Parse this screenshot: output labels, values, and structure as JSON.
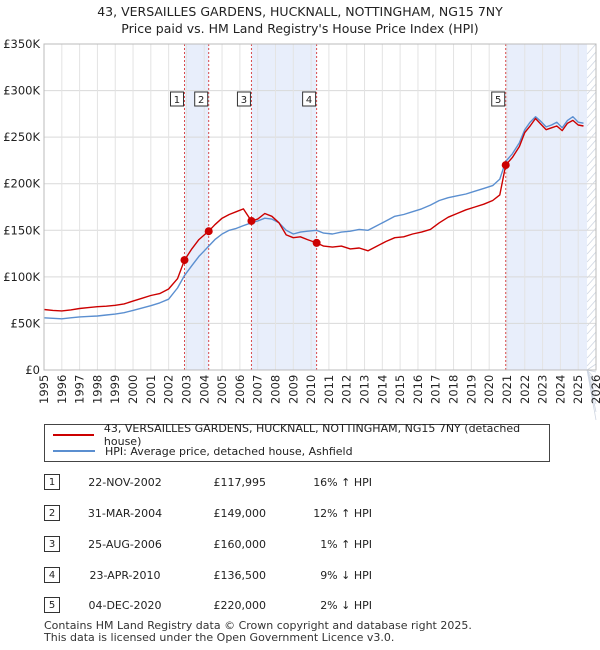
{
  "title_line1": "43, VERSAILLES GARDENS, HUCKNALL, NOTTINGHAM, NG15 7NY",
  "title_line2": "Price paid vs. HM Land Registry's House Price Index (HPI)",
  "colors": {
    "price_paid": "#cc0000",
    "hpi": "#5b8fd0",
    "shade": "#e8eefb"
  },
  "chart_data": {
    "type": "line",
    "ylim": [
      0,
      350000
    ],
    "xlim": [
      1995,
      2026
    ],
    "y_ticks": [
      0,
      50000,
      100000,
      150000,
      200000,
      250000,
      300000,
      350000
    ],
    "y_tick_labels": [
      "£0",
      "£50K",
      "£100K",
      "£150K",
      "£200K",
      "£250K",
      "£300K",
      "£350K"
    ],
    "x_tick_labels": [
      "1995",
      "1996",
      "1997",
      "1998",
      "1999",
      "2000",
      "2001",
      "2002",
      "2003",
      "2004",
      "2005",
      "2006",
      "2007",
      "2008",
      "2009",
      "2010",
      "2011",
      "2012",
      "2013",
      "2014",
      "2015",
      "2016",
      "2017",
      "2018",
      "2019",
      "2020",
      "2021",
      "2022",
      "2023",
      "2024",
      "2025",
      "2026"
    ],
    "shaded_spans": [
      [
        2002.9,
        2004.25
      ],
      [
        2006.65,
        2010.3
      ],
      [
        2020.93,
        2025.5
      ]
    ],
    "series": [
      {
        "name": "43, VERSAILLES GARDENS, HUCKNALL, NOTTINGHAM, NG15 7NY (detached house)",
        "color": "#cc0000",
        "x": [
          1995.0,
          1995.5,
          1996.0,
          1996.5,
          1997.0,
          1997.5,
          1998.0,
          1998.5,
          1999.0,
          1999.5,
          2000.0,
          2000.5,
          2001.0,
          2001.5,
          2002.0,
          2002.5,
          2002.89,
          2003.3,
          2003.7,
          2004.0,
          2004.25,
          2004.6,
          2005.0,
          2005.4,
          2005.8,
          2006.2,
          2006.65,
          2007.0,
          2007.4,
          2007.8,
          2008.2,
          2008.6,
          2009.0,
          2009.4,
          2009.8,
          2010.31,
          2010.7,
          2011.2,
          2011.7,
          2012.2,
          2012.7,
          2013.2,
          2013.7,
          2014.2,
          2014.7,
          2015.2,
          2015.7,
          2016.2,
          2016.7,
          2017.2,
          2017.7,
          2018.2,
          2018.7,
          2019.2,
          2019.7,
          2020.2,
          2020.6,
          2020.93,
          2021.3,
          2021.7,
          2022.0,
          2022.3,
          2022.6,
          2022.9,
          2023.2,
          2023.5,
          2023.8,
          2024.1,
          2024.4,
          2024.7,
          2025.0,
          2025.3
        ],
        "values": [
          65000,
          64000,
          63500,
          64500,
          66000,
          67000,
          68000,
          68500,
          69500,
          71000,
          74000,
          77000,
          80000,
          82000,
          87000,
          98000,
          117995,
          130000,
          140000,
          145000,
          149000,
          156000,
          163000,
          167000,
          170000,
          173000,
          160000,
          162000,
          168000,
          165000,
          158000,
          145000,
          142000,
          143000,
          140000,
          136500,
          133000,
          132000,
          133000,
          130000,
          131000,
          128000,
          133000,
          138000,
          142000,
          143000,
          146000,
          148000,
          151000,
          158000,
          164000,
          168000,
          172000,
          175000,
          178000,
          182000,
          188000,
          220000,
          228000,
          240000,
          255000,
          262000,
          270000,
          264000,
          258000,
          260000,
          262000,
          257000,
          265000,
          268000,
          263000,
          262000
        ]
      },
      {
        "name": "HPI: Average price, detached house, Ashfield",
        "color": "#5b8fd0",
        "x": [
          1995.0,
          1995.5,
          1996.0,
          1996.5,
          1997.0,
          1997.5,
          1998.0,
          1998.5,
          1999.0,
          1999.5,
          2000.0,
          2000.5,
          2001.0,
          2001.5,
          2002.0,
          2002.5,
          2002.89,
          2003.3,
          2003.7,
          2004.0,
          2004.25,
          2004.6,
          2005.0,
          2005.4,
          2005.8,
          2006.2,
          2006.65,
          2007.0,
          2007.4,
          2007.8,
          2008.2,
          2008.6,
          2009.0,
          2009.4,
          2009.8,
          2010.31,
          2010.7,
          2011.2,
          2011.7,
          2012.2,
          2012.7,
          2013.2,
          2013.7,
          2014.2,
          2014.7,
          2015.2,
          2015.7,
          2016.2,
          2016.7,
          2017.2,
          2017.7,
          2018.2,
          2018.7,
          2019.2,
          2019.7,
          2020.2,
          2020.6,
          2020.93,
          2021.3,
          2021.7,
          2022.0,
          2022.3,
          2022.6,
          2022.9,
          2023.2,
          2023.5,
          2023.8,
          2024.1,
          2024.4,
          2024.7,
          2025.0,
          2025.3
        ],
        "values": [
          56000,
          55500,
          55000,
          56000,
          57000,
          57500,
          58000,
          59000,
          60000,
          61500,
          64000,
          66500,
          69000,
          72000,
          76000,
          88000,
          101500,
          112000,
          122000,
          128000,
          133000,
          140000,
          146000,
          150000,
          152000,
          155000,
          158000,
          160000,
          163000,
          162000,
          158000,
          150000,
          146000,
          148000,
          149000,
          150000,
          147000,
          146000,
          148000,
          149000,
          151000,
          150000,
          155000,
          160000,
          165000,
          167000,
          170000,
          173000,
          177000,
          182000,
          185000,
          187000,
          189000,
          192000,
          195000,
          198000,
          205000,
          224000,
          232000,
          244000,
          258000,
          266000,
          272000,
          267000,
          261000,
          263000,
          266000,
          260000,
          268000,
          272000,
          266000,
          265000
        ]
      }
    ],
    "sale_markers": [
      {
        "label": "1",
        "x": 2002.89,
        "price": 117995
      },
      {
        "label": "2",
        "x": 2004.25,
        "price": 149000
      },
      {
        "label": "3",
        "x": 2006.65,
        "price": 160000
      },
      {
        "label": "4",
        "x": 2010.31,
        "price": 136500
      },
      {
        "label": "5",
        "x": 2020.93,
        "price": 220000
      }
    ]
  },
  "legend": {
    "price_paid": "43, VERSAILLES GARDENS, HUCKNALL, NOTTINGHAM, NG15 7NY (detached house)",
    "hpi": "HPI: Average price, detached house, Ashfield"
  },
  "transactions": [
    {
      "num": "1",
      "date": "22-NOV-2002",
      "price": "£117,995",
      "hpi": "16% ↑ HPI"
    },
    {
      "num": "2",
      "date": "31-MAR-2004",
      "price": "£149,000",
      "hpi": "12% ↑ HPI"
    },
    {
      "num": "3",
      "date": "25-AUG-2006",
      "price": "£160,000",
      "hpi": "1% ↑ HPI"
    },
    {
      "num": "4",
      "date": "23-APR-2010",
      "price": "£136,500",
      "hpi": "9% ↓ HPI"
    },
    {
      "num": "5",
      "date": "04-DEC-2020",
      "price": "£220,000",
      "hpi": "2% ↓ HPI"
    }
  ],
  "footer_line1": "Contains HM Land Registry data © Crown copyright and database right 2025.",
  "footer_line2": "This data is licensed under the Open Government Licence v3.0."
}
